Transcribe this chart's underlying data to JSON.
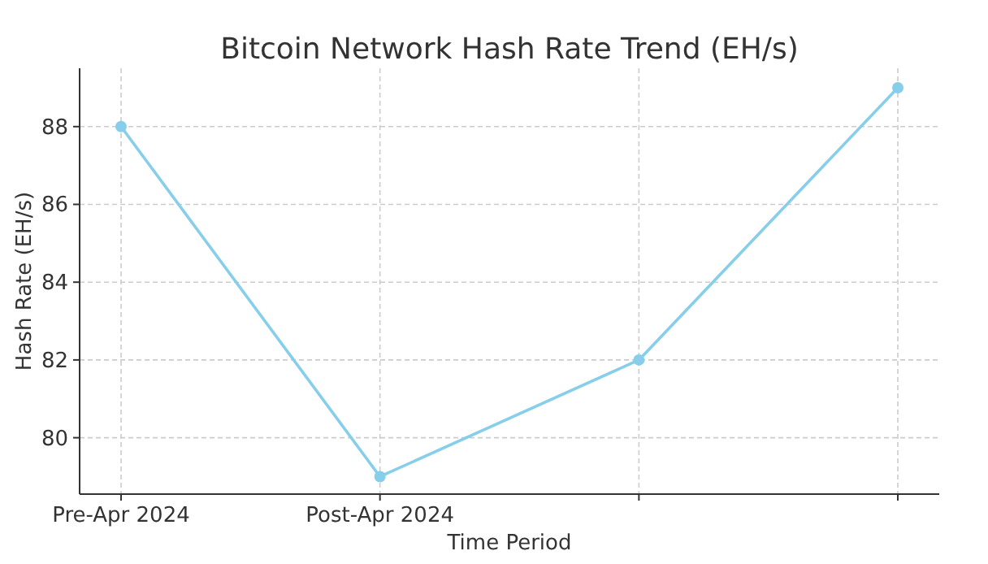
{
  "chart_data": {
    "type": "line",
    "title": "Bitcoin Network Hash Rate Trend (EH/s)",
    "xlabel": "Time Period",
    "ylabel": "Hash Rate (EH/s)",
    "categories": [
      "Pre-Apr 2024",
      "Post-Apr 2024",
      null,
      null
    ],
    "series": [
      {
        "color": "#87ceeb",
        "values": [
          88,
          79,
          82,
          89
        ]
      }
    ],
    "ylim": [
      78.55,
      89.5
    ],
    "yticks": [
      80,
      82,
      84,
      86,
      88
    ],
    "grid": true,
    "marker": "circle",
    "line_style": "solid"
  }
}
